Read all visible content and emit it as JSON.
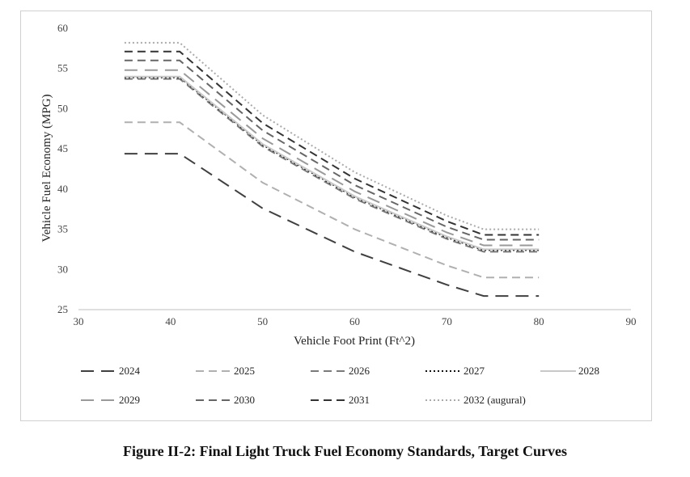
{
  "caption": "Figure II-2: Final Light Truck Fuel Economy Standards, Target Curves",
  "chart_data": {
    "type": "line",
    "title": "",
    "xlabel": "Vehicle Foot Print (Ft^2)",
    "ylabel": "Vehicle Fuel Economy (MPG)",
    "xlim": [
      30,
      90
    ],
    "ylim": [
      25,
      60
    ],
    "xticks": [
      "30",
      "40",
      "50",
      "60",
      "70",
      "80",
      "90"
    ],
    "yticks": [
      "25",
      "30",
      "35",
      "40",
      "45",
      "50",
      "55",
      "60"
    ],
    "grid": false,
    "legend_position": "bottom",
    "x": [
      35,
      41,
      50,
      60,
      70,
      74,
      80
    ],
    "series": [
      {
        "name": "2024",
        "values": [
          44.4,
          44.4,
          37.6,
          32.2,
          28.1,
          26.7,
          26.7
        ],
        "color": "#404040",
        "dash": "long-dash"
      },
      {
        "name": "2025",
        "values": [
          48.3,
          48.3,
          40.8,
          35.0,
          30.5,
          29.0,
          29.0
        ],
        "color": "#b0b0b0",
        "dash": "dash"
      },
      {
        "name": "2026",
        "values": [
          53.7,
          53.7,
          45.3,
          38.8,
          33.8,
          32.2,
          32.2
        ],
        "color": "#7a7a7a",
        "dash": "dash"
      },
      {
        "name": "2027",
        "values": [
          53.9,
          53.9,
          45.5,
          39.0,
          34.0,
          32.4,
          32.4
        ],
        "color": "#111111",
        "dash": "dot"
      },
      {
        "name": "2028",
        "values": [
          54.0,
          54.0,
          45.6,
          39.1,
          34.1,
          32.5,
          32.5
        ],
        "color": "#c8c8c8",
        "dash": "solid"
      },
      {
        "name": "2029",
        "values": [
          54.8,
          54.8,
          46.3,
          39.7,
          34.6,
          33.0,
          33.0
        ],
        "color": "#9a9a9a",
        "dash": "long-dash"
      },
      {
        "name": "2030",
        "values": [
          56.0,
          56.0,
          47.3,
          40.5,
          35.3,
          33.7,
          33.7
        ],
        "color": "#666666",
        "dash": "dash"
      },
      {
        "name": "2031",
        "values": [
          57.1,
          57.1,
          48.2,
          41.3,
          36.0,
          34.3,
          34.3
        ],
        "color": "#333333",
        "dash": "dash"
      },
      {
        "name": "2032 (augural)",
        "values": [
          58.2,
          58.2,
          49.2,
          42.1,
          36.7,
          35.0,
          35.0
        ],
        "color": "#aaaaaa",
        "dash": "dot"
      }
    ]
  }
}
